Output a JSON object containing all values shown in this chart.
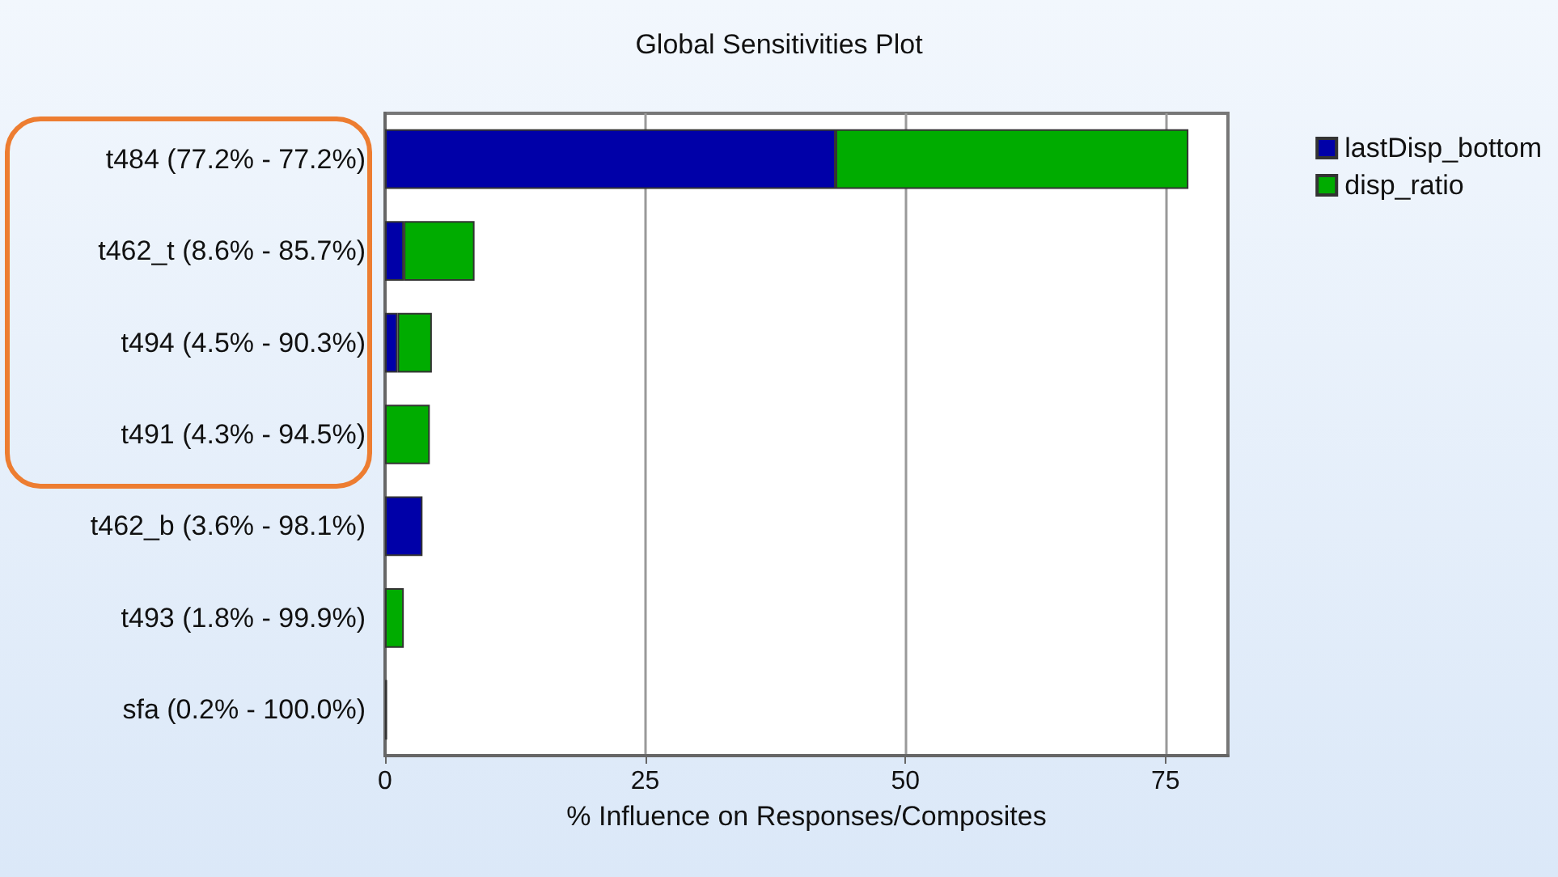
{
  "chart_data": {
    "type": "bar",
    "orientation": "horizontal",
    "stacked": true,
    "title": "Global Sensitivities Plot",
    "xlabel": "% Influence on Responses/Composites",
    "categories": [
      "t484 (77.2% - 77.2%)",
      "t462_t (8.6% - 85.7%)",
      "t494 (4.5% - 90.3%)",
      "t491 (4.3% - 94.5%)",
      "t462_b (3.6% - 98.1%)",
      "t493 (1.8% - 99.9%)",
      "sfa (0.2% - 100.0%)"
    ],
    "series": [
      {
        "name": "lastDisp_bottom",
        "color": "#0000a8",
        "values": [
          43.3,
          1.8,
          1.2,
          null,
          3.6,
          null,
          0.2
        ]
      },
      {
        "name": "disp_ratio",
        "color": "#00ac00",
        "values": [
          33.9,
          6.8,
          3.3,
          4.3,
          null,
          1.8,
          null
        ]
      }
    ],
    "xlim": [
      0,
      81
    ],
    "xticks": [
      0,
      25,
      50,
      75
    ],
    "grid": "x",
    "legend": "top right"
  }
}
